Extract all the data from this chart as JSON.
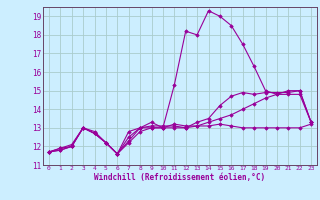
{
  "xlabel": "Windchill (Refroidissement éolien,°C)",
  "background_color": "#cceeff",
  "grid_color": "#aacccc",
  "line_color": "#990099",
  "spine_color": "#664466",
  "xlim": [
    -0.5,
    23.5
  ],
  "ylim": [
    11,
    19.5
  ],
  "yticks": [
    11,
    12,
    13,
    14,
    15,
    16,
    17,
    18,
    19
  ],
  "xticks": [
    0,
    1,
    2,
    3,
    4,
    5,
    6,
    7,
    8,
    9,
    10,
    11,
    12,
    13,
    14,
    15,
    16,
    17,
    18,
    19,
    20,
    21,
    22,
    23
  ],
  "series": [
    [
      11.7,
      11.9,
      12.0,
      13.0,
      12.7,
      12.2,
      11.6,
      12.2,
      12.8,
      13.0,
      13.0,
      13.0,
      13.0,
      13.1,
      13.1,
      13.2,
      13.1,
      13.0,
      13.0,
      13.0,
      13.0,
      13.0,
      13.0,
      13.2
    ],
    [
      11.7,
      11.9,
      12.1,
      13.0,
      12.7,
      12.2,
      11.6,
      12.5,
      13.0,
      13.1,
      13.1,
      13.1,
      13.0,
      13.3,
      13.5,
      14.2,
      14.7,
      14.9,
      14.8,
      14.9,
      14.9,
      14.9,
      15.0,
      13.3
    ],
    [
      11.7,
      11.8,
      12.0,
      13.0,
      12.8,
      12.2,
      11.6,
      12.8,
      13.0,
      13.0,
      13.0,
      13.2,
      13.1,
      13.1,
      13.3,
      13.5,
      13.7,
      14.0,
      14.3,
      14.6,
      14.8,
      15.0,
      15.0,
      13.3
    ],
    [
      11.7,
      11.8,
      12.0,
      13.0,
      12.7,
      12.2,
      11.6,
      12.3,
      13.0,
      13.3,
      13.0,
      15.3,
      18.2,
      18.0,
      19.3,
      19.0,
      18.5,
      17.5,
      16.3,
      15.0,
      14.8,
      14.8,
      14.8,
      13.3
    ]
  ]
}
